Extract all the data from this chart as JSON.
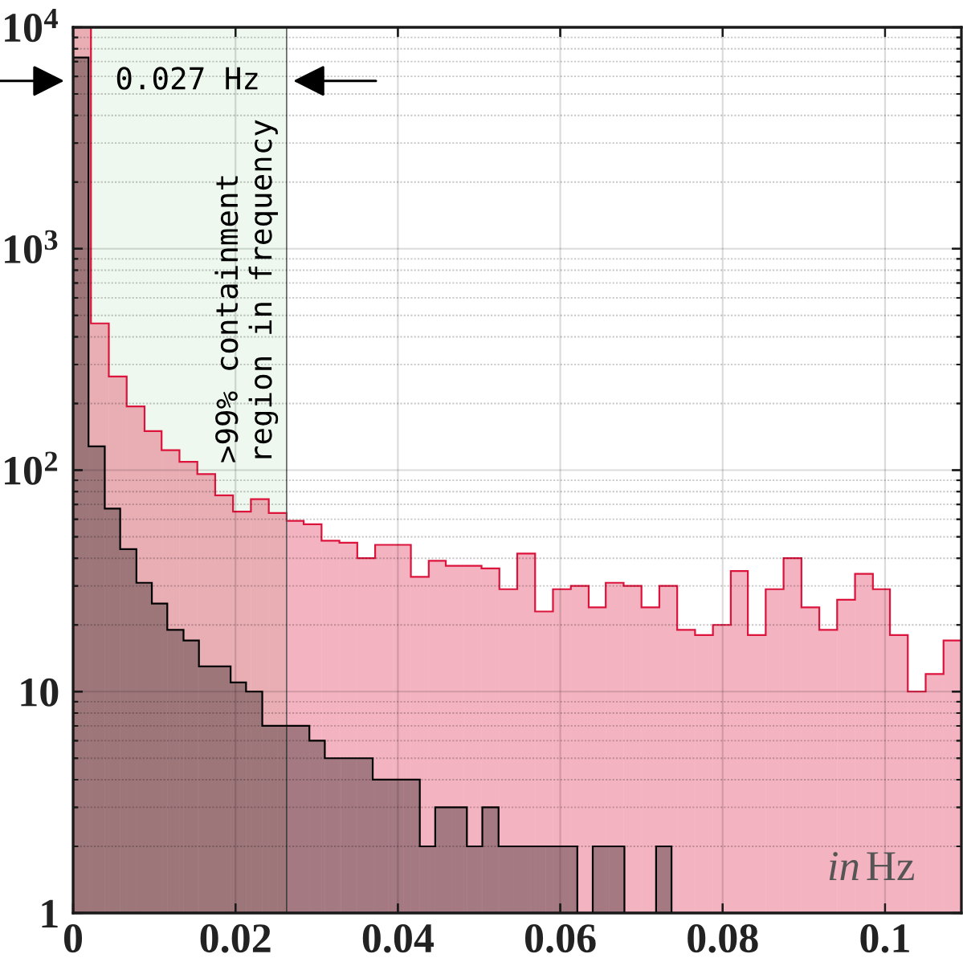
{
  "chart_data": [
    {
      "type": "histogram",
      "color": "#dc143c",
      "bins": [
        0,
        0.0022,
        0.0044,
        0.0066,
        0.0088,
        0.0109,
        0.0131,
        0.0153,
        0.0175,
        0.0197,
        0.0219,
        0.0241,
        0.0263,
        0.0284,
        0.0306,
        0.0328,
        0.035,
        0.0372,
        0.0394,
        0.0416,
        0.0438,
        0.0459,
        0.0481,
        0.0503,
        0.0525,
        0.0547,
        0.0569,
        0.0591,
        0.0613,
        0.0635,
        0.0656,
        0.0678,
        0.07,
        0.0722,
        0.0744,
        0.0766,
        0.0788,
        0.081,
        0.0831,
        0.0853,
        0.0875,
        0.0897,
        0.0919,
        0.0941,
        0.0963,
        0.0985,
        0.1006,
        0.1028,
        0.105,
        0.1072,
        0.1094
      ],
      "values": [
        10000,
        460,
        265,
        194,
        150,
        123,
        109,
        96,
        77,
        65,
        74,
        64,
        59,
        57,
        48,
        47,
        40,
        46,
        46,
        33,
        39,
        37,
        37,
        36,
        29,
        42,
        23,
        29,
        30,
        24,
        31,
        30,
        24,
        30,
        19,
        18,
        20,
        35,
        18,
        29,
        40,
        24,
        19,
        26,
        34,
        29,
        18,
        10,
        12,
        17
      ],
      "xlim": [
        0,
        0.1094
      ],
      "ylim": [
        1,
        10000
      ],
      "xticks": [
        0,
        0.02,
        0.04,
        0.06,
        0.08,
        0.1
      ],
      "yticks": [
        1,
        10,
        {
          "value": 100,
          "label": "10$^{2}$"
        },
        {
          "value": 1000,
          "label": "10$^{3}$"
        },
        {
          "value": 10000,
          "label": "10$^{4}$"
        }
      ],
      "log": "y",
      "grid": true,
      "bands": [
        {
          "axis": "x",
          "from": 0,
          "to": 0.0263,
          "color": "#eef8ee"
        }
      ],
      "annotations": [
        "0.027 Hz",
        ">99% containment\nregion in frequency"
      ],
      "xlabel": "in Hz"
    },
    {
      "type": "histogram",
      "color": "#000000",
      "bins": [
        0,
        0.0019,
        0.0039,
        0.0058,
        0.0078,
        0.0097,
        0.0116,
        0.0136,
        0.0155,
        0.0175,
        0.0194,
        0.0213,
        0.0233,
        0.0252,
        0.0272,
        0.0291,
        0.031,
        0.033,
        0.0349,
        0.0369,
        0.0388,
        0.0407,
        0.0427,
        0.0446,
        0.0466,
        0.0485,
        0.0504,
        0.0524,
        0.0543,
        0.0563,
        0.0582,
        0.0601,
        0.0621,
        0.064,
        0.066,
        0.0679,
        0.0718,
        0.0737
      ],
      "values": [
        7300,
        128,
        67,
        44,
        31,
        25,
        19,
        17,
        13,
        13,
        11,
        10,
        7,
        7,
        7,
        6,
        5,
        5,
        5,
        4,
        4,
        4,
        2,
        3,
        3,
        2,
        3,
        2,
        2,
        2,
        2,
        2,
        null,
        2,
        2,
        null,
        2
      ],
      "xlim": [
        0,
        0.1094
      ],
      "ylim": [
        1,
        10000
      ],
      "xticks": [
        0,
        0.02,
        0.04,
        0.06,
        0.08,
        0.1
      ],
      "yticks": [
        1,
        10,
        100,
        1000,
        10000
      ],
      "log": "y",
      "tick_labels": false
    }
  ]
}
